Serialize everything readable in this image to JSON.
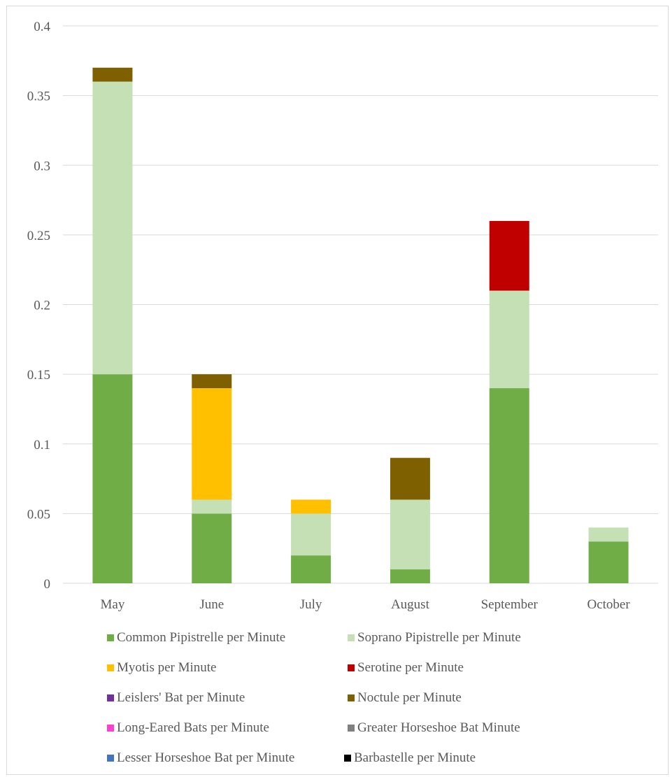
{
  "chart_data": {
    "type": "bar",
    "stacked": true,
    "categories": [
      "May",
      "June",
      "July",
      "August",
      "September",
      "October"
    ],
    "ylim": [
      0,
      0.4
    ],
    "yticks": [
      "0",
      "0.05",
      "0.1",
      "0.15",
      "0.2",
      "0.25",
      "0.3",
      "0.35",
      "0.4"
    ],
    "grid": true,
    "legend_position": "bottom",
    "series": [
      {
        "name": "Common Pipistrelle per Minute",
        "color": "#70ad47",
        "values": [
          0.15,
          0.05,
          0.02,
          0.01,
          0.14,
          0.03
        ]
      },
      {
        "name": "Soprano Pipistrelle per Minute",
        "color": "#c5e0b4",
        "values": [
          0.21,
          0.01,
          0.03,
          0.05,
          0.07,
          0.01
        ]
      },
      {
        "name": "Myotis per Minute",
        "color": "#ffc000",
        "values": [
          0,
          0.08,
          0.01,
          0,
          0,
          0
        ]
      },
      {
        "name": "Serotine per Minute",
        "color": "#c00000",
        "values": [
          0,
          0,
          0,
          0,
          0.05,
          0
        ]
      },
      {
        "name": "Leislers' Bat per Minute",
        "color": "#7030a0",
        "values": [
          0,
          0,
          0,
          0,
          0,
          0
        ]
      },
      {
        "name": "Noctule per Minute",
        "color": "#7f6000",
        "values": [
          0.01,
          0.01,
          0,
          0.03,
          0,
          0
        ]
      },
      {
        "name": "Long-Eared Bats per Minute",
        "color": "#ff3fd0",
        "values": [
          0,
          0,
          0,
          0,
          0,
          0
        ]
      },
      {
        "name": "Greater Horseshoe Bat Minute",
        "color": "#808080",
        "values": [
          0,
          0,
          0,
          0,
          0,
          0
        ]
      },
      {
        "name": "Lesser Horseshoe Bat per Minute",
        "color": "#4472c4",
        "values": [
          0,
          0,
          0,
          0,
          0,
          0
        ]
      },
      {
        "name": "Barbastelle per Minute",
        "color": "#000000",
        "values": [
          0,
          0,
          0,
          0,
          0,
          0
        ]
      }
    ]
  }
}
